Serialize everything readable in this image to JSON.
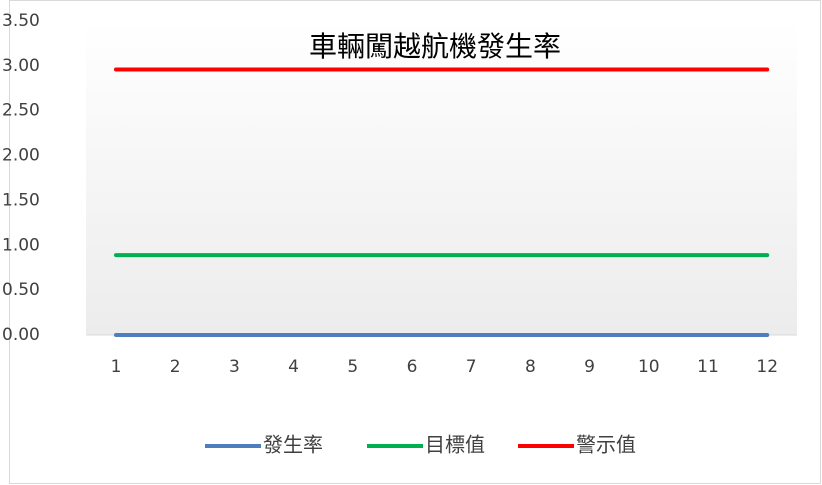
{
  "chart_data": {
    "type": "line",
    "title": "車輛闖越航機發生率",
    "categories": [
      1,
      2,
      3,
      4,
      5,
      6,
      7,
      8,
      9,
      10,
      11,
      12
    ],
    "series": [
      {
        "name": "發生率",
        "color": "#4f7ebf",
        "values": [
          0,
          0,
          0,
          0,
          0,
          0,
          0,
          0,
          0,
          0,
          0,
          0
        ]
      },
      {
        "name": "目標值",
        "color": "#00b050",
        "values": [
          0.89,
          0.89,
          0.89,
          0.89,
          0.89,
          0.89,
          0.89,
          0.89,
          0.89,
          0.89,
          0.89,
          0.89
        ]
      },
      {
        "name": "警示值",
        "color": "#ff0000",
        "values": [
          2.96,
          2.96,
          2.96,
          2.96,
          2.96,
          2.96,
          2.96,
          2.96,
          2.96,
          2.96,
          2.96,
          2.96
        ]
      }
    ],
    "ylim": [
      0,
      3.5
    ],
    "yticks": [
      {
        "value": 0,
        "label": "0.00"
      },
      {
        "value": 0.5,
        "label": "0.50"
      },
      {
        "value": 1,
        "label": "1.00"
      },
      {
        "value": 1.5,
        "label": "1.50"
      },
      {
        "value": 2,
        "label": "2.00"
      },
      {
        "value": 2.5,
        "label": "2.50"
      },
      {
        "value": 3,
        "label": "3.00"
      },
      {
        "value": 3.5,
        "label": "3.50"
      }
    ],
    "legend": "bottom"
  }
}
